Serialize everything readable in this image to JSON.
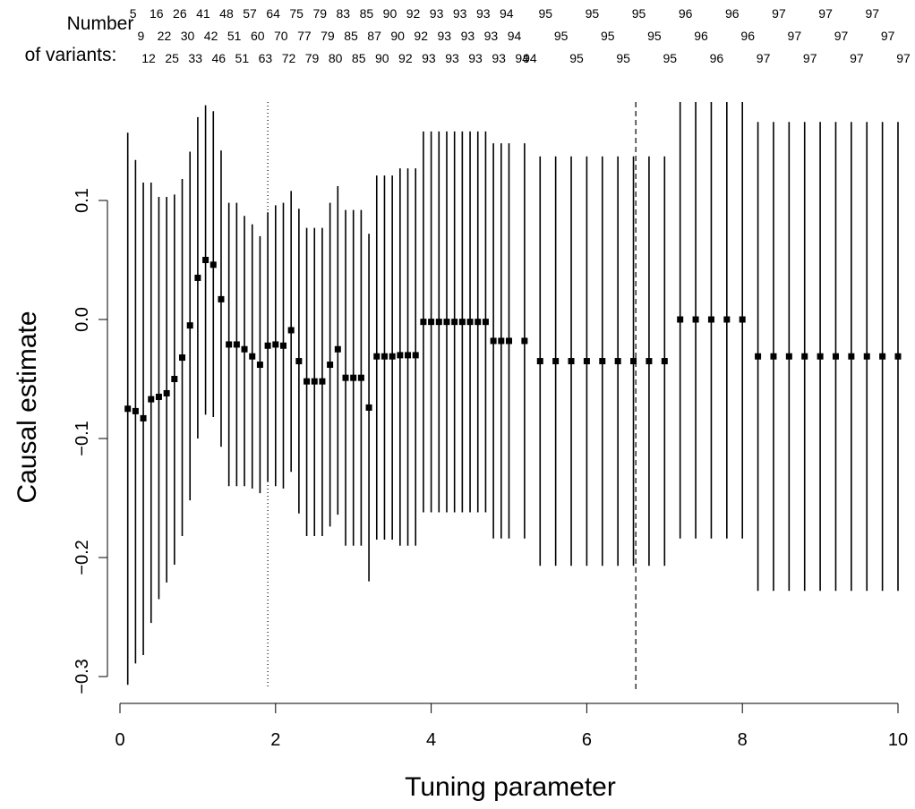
{
  "header_labels": {
    "line1": "Number",
    "line2": "of variants:"
  },
  "variant_counts": [
    {
      "x": 0.1,
      "row": 1,
      "n": "5"
    },
    {
      "x": 0.2,
      "row": 2,
      "n": "9"
    },
    {
      "x": 0.3,
      "row": 3,
      "n": "12"
    },
    {
      "x": 0.4,
      "row": 1,
      "n": "16"
    },
    {
      "x": 0.5,
      "row": 2,
      "n": "22"
    },
    {
      "x": 0.6,
      "row": 3,
      "n": "25"
    },
    {
      "x": 0.7,
      "row": 1,
      "n": "26"
    },
    {
      "x": 0.8,
      "row": 2,
      "n": "30"
    },
    {
      "x": 0.9,
      "row": 3,
      "n": "33"
    },
    {
      "x": 1.0,
      "row": 1,
      "n": "41"
    },
    {
      "x": 1.1,
      "row": 2,
      "n": "42"
    },
    {
      "x": 1.2,
      "row": 3,
      "n": "46"
    },
    {
      "x": 1.3,
      "row": 1,
      "n": "48"
    },
    {
      "x": 1.4,
      "row": 2,
      "n": "51"
    },
    {
      "x": 1.5,
      "row": 3,
      "n": "51"
    },
    {
      "x": 1.6,
      "row": 1,
      "n": "57"
    },
    {
      "x": 1.7,
      "row": 2,
      "n": "60"
    },
    {
      "x": 1.8,
      "row": 3,
      "n": "63"
    },
    {
      "x": 1.9,
      "row": 1,
      "n": "64"
    },
    {
      "x": 2.0,
      "row": 2,
      "n": "70"
    },
    {
      "x": 2.1,
      "row": 3,
      "n": "72"
    },
    {
      "x": 2.2,
      "row": 1,
      "n": "75"
    },
    {
      "x": 2.3,
      "row": 2,
      "n": "77"
    },
    {
      "x": 2.4,
      "row": 3,
      "n": "79"
    },
    {
      "x": 2.5,
      "row": 1,
      "n": "79"
    },
    {
      "x": 2.6,
      "row": 2,
      "n": "79"
    },
    {
      "x": 2.7,
      "row": 3,
      "n": "80"
    },
    {
      "x": 2.8,
      "row": 1,
      "n": "83"
    },
    {
      "x": 2.9,
      "row": 2,
      "n": "85"
    },
    {
      "x": 3.0,
      "row": 3,
      "n": "85"
    },
    {
      "x": 3.1,
      "row": 1,
      "n": "85"
    },
    {
      "x": 3.2,
      "row": 2,
      "n": "87"
    },
    {
      "x": 3.3,
      "row": 3,
      "n": "90"
    },
    {
      "x": 3.4,
      "row": 1,
      "n": "90"
    },
    {
      "x": 3.5,
      "row": 2,
      "n": "90"
    },
    {
      "x": 3.6,
      "row": 3,
      "n": "92"
    },
    {
      "x": 3.7,
      "row": 1,
      "n": "92"
    },
    {
      "x": 3.8,
      "row": 2,
      "n": "92"
    },
    {
      "x": 3.9,
      "row": 3,
      "n": "93"
    },
    {
      "x": 4.0,
      "row": 1,
      "n": "93"
    },
    {
      "x": 4.1,
      "row": 2,
      "n": "93"
    },
    {
      "x": 4.2,
      "row": 3,
      "n": "93"
    },
    {
      "x": 4.3,
      "row": 1,
      "n": "93"
    },
    {
      "x": 4.4,
      "row": 2,
      "n": "93"
    },
    {
      "x": 4.5,
      "row": 3,
      "n": "93"
    },
    {
      "x": 4.6,
      "row": 1,
      "n": "93"
    },
    {
      "x": 4.7,
      "row": 2,
      "n": "93"
    },
    {
      "x": 4.8,
      "row": 3,
      "n": "93"
    },
    {
      "x": 4.9,
      "row": 1,
      "n": "94"
    },
    {
      "x": 5.0,
      "row": 2,
      "n": "94"
    },
    {
      "x": 5.1,
      "row": 3,
      "n": "94"
    },
    {
      "x": 5.2,
      "row": 3,
      "n": "94"
    },
    {
      "x": 5.4,
      "row": 1,
      "n": "95"
    },
    {
      "x": 5.6,
      "row": 2,
      "n": "95"
    },
    {
      "x": 5.8,
      "row": 3,
      "n": "95"
    },
    {
      "x": 6.0,
      "row": 1,
      "n": "95"
    },
    {
      "x": 6.2,
      "row": 2,
      "n": "95"
    },
    {
      "x": 6.4,
      "row": 3,
      "n": "95"
    },
    {
      "x": 6.6,
      "row": 1,
      "n": "95"
    },
    {
      "x": 6.8,
      "row": 2,
      "n": "95"
    },
    {
      "x": 7.0,
      "row": 3,
      "n": "95"
    },
    {
      "x": 7.2,
      "row": 1,
      "n": "96"
    },
    {
      "x": 7.4,
      "row": 2,
      "n": "96"
    },
    {
      "x": 7.6,
      "row": 3,
      "n": "96"
    },
    {
      "x": 7.8,
      "row": 1,
      "n": "96"
    },
    {
      "x": 8.0,
      "row": 2,
      "n": "96"
    },
    {
      "x": 8.2,
      "row": 3,
      "n": "97"
    },
    {
      "x": 8.4,
      "row": 1,
      "n": "97"
    },
    {
      "x": 8.6,
      "row": 2,
      "n": "97"
    },
    {
      "x": 8.8,
      "row": 3,
      "n": "97"
    },
    {
      "x": 9.0,
      "row": 1,
      "n": "97"
    },
    {
      "x": 9.2,
      "row": 2,
      "n": "97"
    },
    {
      "x": 9.4,
      "row": 3,
      "n": "97"
    },
    {
      "x": 9.6,
      "row": 1,
      "n": "97"
    },
    {
      "x": 9.8,
      "row": 2,
      "n": "97"
    },
    {
      "x": 10.0,
      "row": 3,
      "n": "97"
    }
  ],
  "chart_data": {
    "type": "scatter",
    "title": "",
    "xlabel": "Tuning parameter",
    "ylabel": "Causal estimate",
    "xlim": [
      0,
      10
    ],
    "ylim": [
      -0.31,
      0.19
    ],
    "xticks": [
      "0",
      "2",
      "4",
      "6",
      "8",
      "10"
    ],
    "xtick_values": [
      0,
      2,
      4,
      6,
      8,
      10
    ],
    "yticks": [
      "−0.3",
      "−0.2",
      "−0.1",
      "0.0",
      "0.1"
    ],
    "ytick_values": [
      -0.3,
      -0.2,
      -0.1,
      0.0,
      0.1
    ],
    "grid": false,
    "reference_lines": [
      {
        "x": 1.9,
        "style": "dotted"
      },
      {
        "x": 6.63,
        "style": "dashed"
      }
    ],
    "series": [
      {
        "points": [
          {
            "x": 0.1,
            "y": -0.075,
            "lo": -0.307,
            "hi": 0.157
          },
          {
            "x": 0.2,
            "y": -0.077,
            "lo": -0.289,
            "hi": 0.134
          },
          {
            "x": 0.3,
            "y": -0.083,
            "lo": -0.282,
            "hi": 0.115
          },
          {
            "x": 0.4,
            "y": -0.067,
            "lo": -0.255,
            "hi": 0.115
          },
          {
            "x": 0.5,
            "y": -0.065,
            "lo": -0.235,
            "hi": 0.103
          },
          {
            "x": 0.6,
            "y": -0.062,
            "lo": -0.221,
            "hi": 0.103
          },
          {
            "x": 0.7,
            "y": -0.05,
            "lo": -0.206,
            "hi": 0.105
          },
          {
            "x": 0.8,
            "y": -0.032,
            "lo": -0.182,
            "hi": 0.118
          },
          {
            "x": 0.9,
            "y": -0.005,
            "lo": -0.152,
            "hi": 0.141
          },
          {
            "x": 1.0,
            "y": 0.035,
            "lo": -0.1,
            "hi": 0.17
          },
          {
            "x": 1.1,
            "y": 0.05,
            "lo": -0.08,
            "hi": 0.18
          },
          {
            "x": 1.2,
            "y": 0.046,
            "lo": -0.082,
            "hi": 0.175
          },
          {
            "x": 1.3,
            "y": 0.017,
            "lo": -0.107,
            "hi": 0.142
          },
          {
            "x": 1.4,
            "y": -0.021,
            "lo": -0.14,
            "hi": 0.098
          },
          {
            "x": 1.5,
            "y": -0.021,
            "lo": -0.14,
            "hi": 0.098
          },
          {
            "x": 1.6,
            "y": -0.025,
            "lo": -0.14,
            "hi": 0.087
          },
          {
            "x": 1.7,
            "y": -0.031,
            "lo": -0.142,
            "hi": 0.08
          },
          {
            "x": 1.8,
            "y": -0.038,
            "lo": -0.146,
            "hi": 0.07
          },
          {
            "x": 1.9,
            "y": -0.022,
            "lo": -0.136,
            "hi": 0.09
          },
          {
            "x": 2.0,
            "y": -0.021,
            "lo": -0.14,
            "hi": 0.096
          },
          {
            "x": 2.1,
            "y": -0.022,
            "lo": -0.142,
            "hi": 0.098
          },
          {
            "x": 2.2,
            "y": -0.009,
            "lo": -0.128,
            "hi": 0.108
          },
          {
            "x": 2.3,
            "y": -0.035,
            "lo": -0.163,
            "hi": 0.093
          },
          {
            "x": 2.4,
            "y": -0.052,
            "lo": -0.182,
            "hi": 0.077
          },
          {
            "x": 2.5,
            "y": -0.052,
            "lo": -0.182,
            "hi": 0.077
          },
          {
            "x": 2.6,
            "y": -0.052,
            "lo": -0.182,
            "hi": 0.077
          },
          {
            "x": 2.7,
            "y": -0.038,
            "lo": -0.174,
            "hi": 0.098
          },
          {
            "x": 2.8,
            "y": -0.025,
            "lo": -0.164,
            "hi": 0.112
          },
          {
            "x": 2.9,
            "y": -0.049,
            "lo": -0.19,
            "hi": 0.092
          },
          {
            "x": 3.0,
            "y": -0.049,
            "lo": -0.19,
            "hi": 0.092
          },
          {
            "x": 3.1,
            "y": -0.049,
            "lo": -0.19,
            "hi": 0.092
          },
          {
            "x": 3.2,
            "y": -0.074,
            "lo": -0.22,
            "hi": 0.072
          },
          {
            "x": 3.3,
            "y": -0.031,
            "lo": -0.185,
            "hi": 0.121
          },
          {
            "x": 3.4,
            "y": -0.031,
            "lo": -0.185,
            "hi": 0.121
          },
          {
            "x": 3.5,
            "y": -0.031,
            "lo": -0.185,
            "hi": 0.121
          },
          {
            "x": 3.6,
            "y": -0.03,
            "lo": -0.19,
            "hi": 0.127
          },
          {
            "x": 3.7,
            "y": -0.03,
            "lo": -0.19,
            "hi": 0.127
          },
          {
            "x": 3.8,
            "y": -0.03,
            "lo": -0.19,
            "hi": 0.127
          },
          {
            "x": 3.9,
            "y": -0.002,
            "lo": -0.162,
            "hi": 0.158
          },
          {
            "x": 4.0,
            "y": -0.002,
            "lo": -0.162,
            "hi": 0.158
          },
          {
            "x": 4.1,
            "y": -0.002,
            "lo": -0.162,
            "hi": 0.158
          },
          {
            "x": 4.2,
            "y": -0.002,
            "lo": -0.162,
            "hi": 0.158
          },
          {
            "x": 4.3,
            "y": -0.002,
            "lo": -0.162,
            "hi": 0.158
          },
          {
            "x": 4.4,
            "y": -0.002,
            "lo": -0.162,
            "hi": 0.158
          },
          {
            "x": 4.5,
            "y": -0.002,
            "lo": -0.162,
            "hi": 0.158
          },
          {
            "x": 4.6,
            "y": -0.002,
            "lo": -0.162,
            "hi": 0.158
          },
          {
            "x": 4.7,
            "y": -0.002,
            "lo": -0.162,
            "hi": 0.158
          },
          {
            "x": 4.8,
            "y": -0.018,
            "lo": -0.184,
            "hi": 0.148
          },
          {
            "x": 4.9,
            "y": -0.018,
            "lo": -0.184,
            "hi": 0.148
          },
          {
            "x": 5.0,
            "y": -0.018,
            "lo": -0.184,
            "hi": 0.148
          },
          {
            "x": 5.2,
            "y": -0.018,
            "lo": -0.184,
            "hi": 0.148
          },
          {
            "x": 5.4,
            "y": -0.035,
            "lo": -0.207,
            "hi": 0.137
          },
          {
            "x": 5.6,
            "y": -0.035,
            "lo": -0.207,
            "hi": 0.137
          },
          {
            "x": 5.8,
            "y": -0.035,
            "lo": -0.207,
            "hi": 0.137
          },
          {
            "x": 6.0,
            "y": -0.035,
            "lo": -0.207,
            "hi": 0.137
          },
          {
            "x": 6.2,
            "y": -0.035,
            "lo": -0.207,
            "hi": 0.137
          },
          {
            "x": 6.4,
            "y": -0.035,
            "lo": -0.207,
            "hi": 0.137
          },
          {
            "x": 6.6,
            "y": -0.035,
            "lo": -0.207,
            "hi": 0.137
          },
          {
            "x": 6.8,
            "y": -0.035,
            "lo": -0.207,
            "hi": 0.137
          },
          {
            "x": 7.0,
            "y": -0.035,
            "lo": -0.207,
            "hi": 0.137
          },
          {
            "x": 7.2,
            "y": 0.0,
            "lo": -0.184,
            "hi": 0.183
          },
          {
            "x": 7.4,
            "y": 0.0,
            "lo": -0.184,
            "hi": 0.183
          },
          {
            "x": 7.6,
            "y": 0.0,
            "lo": -0.184,
            "hi": 0.183
          },
          {
            "x": 7.8,
            "y": 0.0,
            "lo": -0.184,
            "hi": 0.183
          },
          {
            "x": 8.0,
            "y": 0.0,
            "lo": -0.184,
            "hi": 0.183
          },
          {
            "x": 8.2,
            "y": -0.031,
            "lo": -0.228,
            "hi": 0.166
          },
          {
            "x": 8.4,
            "y": -0.031,
            "lo": -0.228,
            "hi": 0.166
          },
          {
            "x": 8.6,
            "y": -0.031,
            "lo": -0.228,
            "hi": 0.166
          },
          {
            "x": 8.8,
            "y": -0.031,
            "lo": -0.228,
            "hi": 0.166
          },
          {
            "x": 9.0,
            "y": -0.031,
            "lo": -0.228,
            "hi": 0.166
          },
          {
            "x": 9.2,
            "y": -0.031,
            "lo": -0.228,
            "hi": 0.166
          },
          {
            "x": 9.4,
            "y": -0.031,
            "lo": -0.228,
            "hi": 0.166
          },
          {
            "x": 9.6,
            "y": -0.031,
            "lo": -0.228,
            "hi": 0.166
          },
          {
            "x": 9.8,
            "y": -0.031,
            "lo": -0.228,
            "hi": 0.166
          },
          {
            "x": 10.0,
            "y": -0.031,
            "lo": -0.228,
            "hi": 0.166
          }
        ]
      }
    ]
  }
}
